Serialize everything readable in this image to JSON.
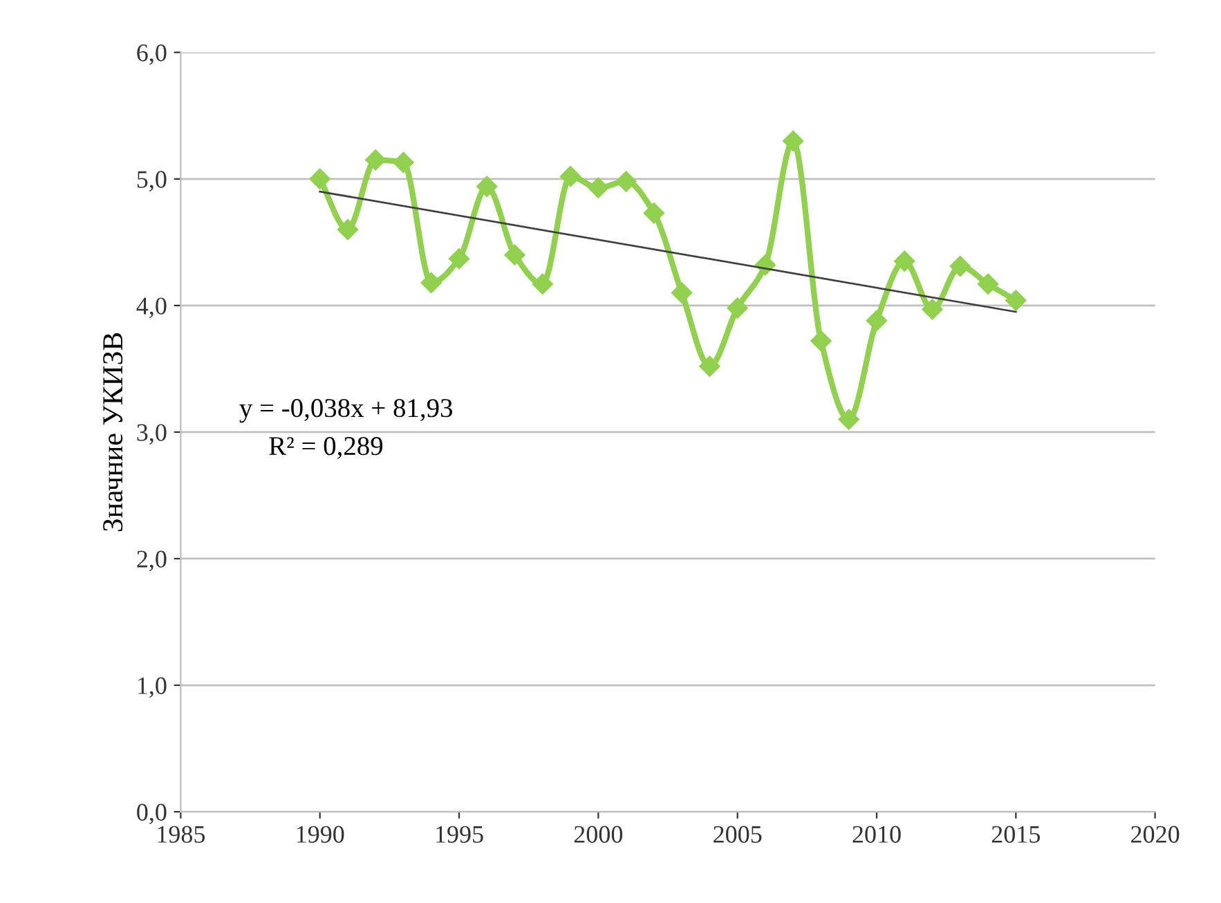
{
  "chart_data": {
    "type": "line",
    "ylabel": "Значние УКИЗВ",
    "xlim": [
      1985,
      2020
    ],
    "xticks": [
      1985,
      1990,
      1995,
      2000,
      2005,
      2010,
      2015,
      2020
    ],
    "ylim": [
      0,
      6
    ],
    "yticks": [
      {
        "value": 0,
        "label": "0,0"
      },
      {
        "value": 1,
        "label": "1,0"
      },
      {
        "value": 2,
        "label": "2,0"
      },
      {
        "value": 3,
        "label": "3,0"
      },
      {
        "value": 4,
        "label": "4,0"
      },
      {
        "value": 5,
        "label": "5,0"
      },
      {
        "value": 6,
        "label": "6,0"
      }
    ],
    "grid": "y",
    "marker": "diamond",
    "line_style": "solid",
    "x": [
      1990,
      1991,
      1992,
      1993,
      1994,
      1995,
      1996,
      1997,
      1998,
      1999,
      2000,
      2001,
      2002,
      2003,
      2004,
      2005,
      2006,
      2007,
      2008,
      2009,
      2010,
      2011,
      2012,
      2013,
      2014,
      2015
    ],
    "series": [
      {
        "color": "#92d050",
        "values": [
          5.0,
          4.6,
          5.15,
          5.13,
          4.18,
          4.37,
          4.94,
          4.4,
          4.17,
          5.02,
          4.93,
          4.98,
          4.73,
          4.1,
          3.52,
          3.98,
          4.32,
          5.3,
          3.72,
          3.1,
          3.88,
          4.35,
          3.97,
          4.31,
          4.17,
          4.04
        ]
      },
      {
        "type": "line",
        "color": "#404040",
        "marker": "none",
        "x": [
          1990,
          2015
        ],
        "values": [
          4.9,
          3.95
        ]
      }
    ],
    "annotations": [
      "y = -0,038x + 81,93",
      "R² = 0,289"
    ]
  }
}
